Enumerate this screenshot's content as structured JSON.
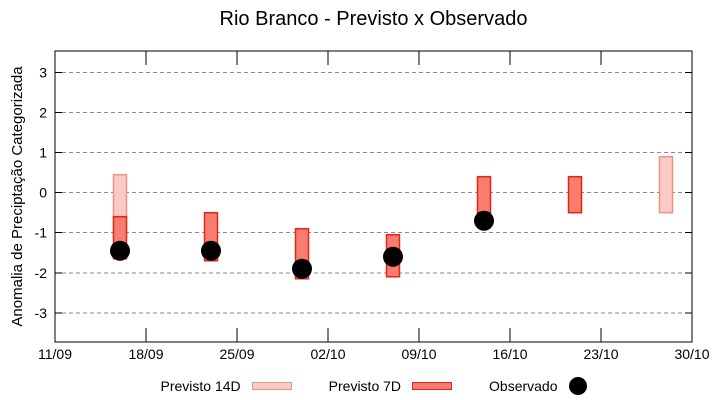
{
  "chart_data": {
    "type": "bar",
    "title": "Rio Branco - Previsto x Observado",
    "xlabel": "",
    "ylabel": "Anomalia de Preciptação Categorizada",
    "x_ticks": [
      {
        "day": 0,
        "label": "11/09"
      },
      {
        "day": 7,
        "label": "18/09"
      },
      {
        "day": 14,
        "label": "25/09"
      },
      {
        "day": 21,
        "label": "02/10"
      },
      {
        "day": 28,
        "label": "09/10"
      },
      {
        "day": 35,
        "label": "16/10"
      },
      {
        "day": 42,
        "label": "23/10"
      },
      {
        "day": 49,
        "label": "30/10"
      }
    ],
    "y_ticks": [
      3,
      2,
      1,
      0,
      -1,
      -2,
      -3
    ],
    "ylim": [
      -3.73,
      3.54
    ],
    "xlim_days": [
      0,
      49
    ],
    "grid": {
      "horizontal": true,
      "vertical": false,
      "style": "dashed",
      "color": "#8a8a8a"
    },
    "axis_color": "#000000",
    "legend_position": "bottom",
    "series": [
      {
        "name": "Previsto 14D",
        "render": "range-bar",
        "fill": "#f9cbc7",
        "border": "#ef9084",
        "points": [
          {
            "date": "16/09",
            "day": 5,
            "high": 0.45,
            "low": -1.1
          },
          {
            "date": "28/10",
            "day": 47,
            "high": 0.9,
            "low": -0.5
          }
        ]
      },
      {
        "name": "Previsto 7D",
        "render": "range-bar",
        "fill": "#f87c70",
        "border": "#e52517",
        "points": [
          {
            "date": "16/09",
            "day": 5,
            "high": -0.6,
            "low": -1.65
          },
          {
            "date": "23/09",
            "day": 12,
            "high": -0.5,
            "low": -1.7
          },
          {
            "date": "30/09",
            "day": 19,
            "high": -0.9,
            "low": -2.15
          },
          {
            "date": "07/10",
            "day": 26,
            "high": -1.05,
            "low": -2.1
          },
          {
            "date": "14/10",
            "day": 33,
            "high": 0.4,
            "low": -0.5
          },
          {
            "date": "21/10",
            "day": 40,
            "high": 0.4,
            "low": -0.5
          }
        ]
      },
      {
        "name": "Observado",
        "render": "dot",
        "color": "#000000",
        "points": [
          {
            "date": "16/09",
            "day": 5,
            "value": -1.45
          },
          {
            "date": "23/09",
            "day": 12,
            "value": -1.45
          },
          {
            "date": "30/09",
            "day": 19,
            "value": -1.9
          },
          {
            "date": "07/10",
            "day": 26,
            "value": -1.6
          },
          {
            "date": "14/10",
            "day": 33,
            "value": -0.7
          }
        ]
      }
    ]
  }
}
